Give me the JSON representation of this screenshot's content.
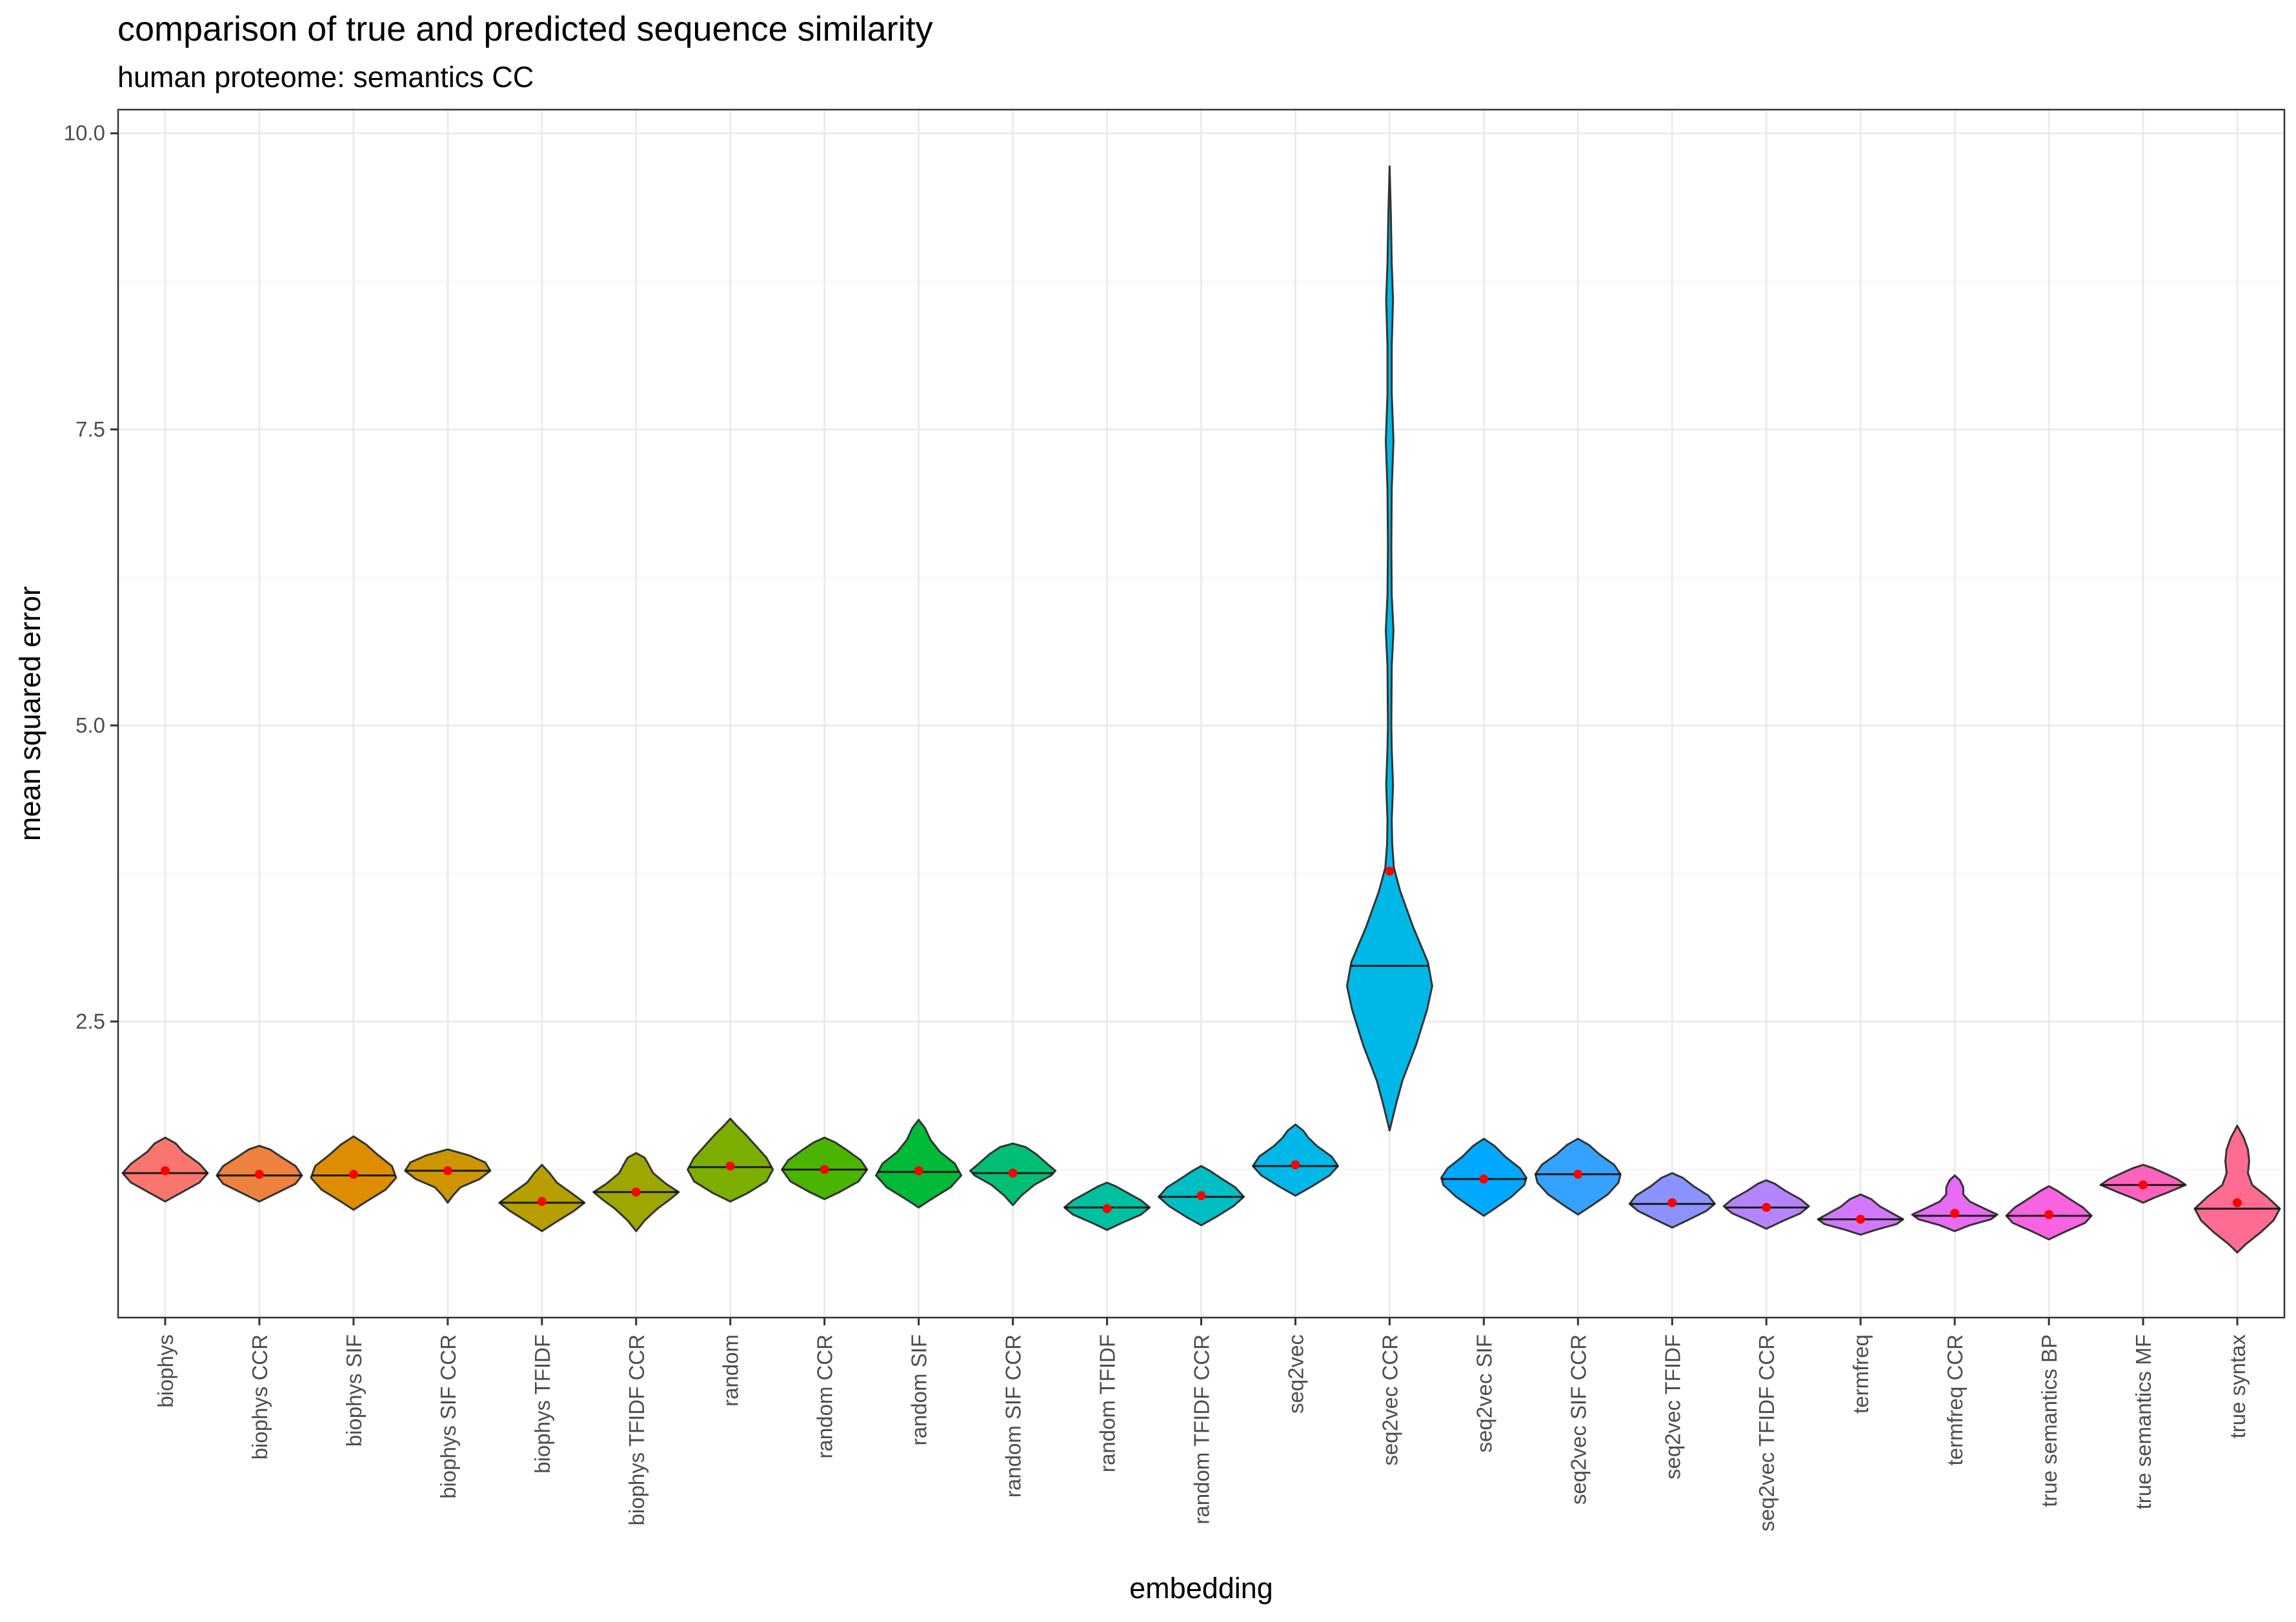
{
  "chart_data": {
    "type": "violin",
    "title": "comparison of true and predicted sequence similarity",
    "subtitle": "human proteome: semantics CC",
    "xlabel": "embedding",
    "ylabel": "mean squared error",
    "ylim": [
      0.0,
      10.2
    ],
    "yticks": [
      2.5,
      5.0,
      7.5,
      10.0
    ],
    "ytick_labels": [
      "2.5",
      "5.0",
      "7.5",
      "10.0"
    ],
    "grid": true,
    "legend": "none",
    "colors": {
      "panel_border": "#333333",
      "grid_major": "#ebebeb",
      "grid_minor": "#f4f4f4",
      "violin_outline": "#333333",
      "median_line": "#1a1a1a",
      "mean_point": "#ff0000"
    },
    "categories": [
      {
        "name": "biophys",
        "color": "#F8766D",
        "median": 1.22,
        "mean": 1.24,
        "min": 0.98,
        "max": 1.52,
        "profile": [
          [
            0.98,
            0.0
          ],
          [
            1.05,
            0.35
          ],
          [
            1.14,
            0.8
          ],
          [
            1.22,
            1.0
          ],
          [
            1.3,
            0.8
          ],
          [
            1.4,
            0.42
          ],
          [
            1.47,
            0.25
          ],
          [
            1.52,
            0.0
          ]
        ]
      },
      {
        "name": "biophys CCR",
        "color": "#ED813E",
        "median": 1.2,
        "mean": 1.21,
        "min": 0.98,
        "max": 1.45,
        "profile": [
          [
            0.98,
            0.0
          ],
          [
            1.05,
            0.4
          ],
          [
            1.13,
            0.85
          ],
          [
            1.2,
            1.0
          ],
          [
            1.28,
            0.85
          ],
          [
            1.36,
            0.5
          ],
          [
            1.42,
            0.25
          ],
          [
            1.45,
            0.0
          ]
        ]
      },
      {
        "name": "biophys SIF",
        "color": "#DE8C00",
        "median": 1.2,
        "mean": 1.21,
        "min": 0.91,
        "max": 1.53,
        "profile": [
          [
            0.91,
            0.0
          ],
          [
            0.98,
            0.3
          ],
          [
            1.08,
            0.75
          ],
          [
            1.18,
            1.0
          ],
          [
            1.28,
            0.9
          ],
          [
            1.38,
            0.55
          ],
          [
            1.46,
            0.3
          ],
          [
            1.53,
            0.0
          ]
        ]
      },
      {
        "name": "biophys SIF CCR",
        "color": "#CD9600",
        "median": 1.24,
        "mean": 1.24,
        "min": 0.97,
        "max": 1.42,
        "profile": [
          [
            0.97,
            0.0
          ],
          [
            1.03,
            0.12
          ],
          [
            1.1,
            0.3
          ],
          [
            1.17,
            0.75
          ],
          [
            1.24,
            1.0
          ],
          [
            1.31,
            0.88
          ],
          [
            1.37,
            0.5
          ],
          [
            1.42,
            0.0
          ]
        ]
      },
      {
        "name": "biophys TFIDF",
        "color": "#B79F00",
        "median": 0.97,
        "mean": 0.98,
        "min": 0.73,
        "max": 1.29,
        "profile": [
          [
            0.73,
            0.0
          ],
          [
            0.8,
            0.3
          ],
          [
            0.9,
            0.75
          ],
          [
            0.97,
            1.0
          ],
          [
            1.05,
            0.7
          ],
          [
            1.14,
            0.35
          ],
          [
            1.22,
            0.18
          ],
          [
            1.29,
            0.0
          ]
        ]
      },
      {
        "name": "biophys TFIDF CCR",
        "color": "#9DA700",
        "median": 1.06,
        "mean": 1.06,
        "min": 0.73,
        "max": 1.39,
        "profile": [
          [
            0.73,
            0.0
          ],
          [
            0.82,
            0.2
          ],
          [
            0.92,
            0.5
          ],
          [
            1.0,
            0.8
          ],
          [
            1.06,
            1.0
          ],
          [
            1.13,
            0.7
          ],
          [
            1.22,
            0.4
          ],
          [
            1.3,
            0.28
          ],
          [
            1.35,
            0.2
          ],
          [
            1.39,
            0.0
          ]
        ]
      },
      {
        "name": "random",
        "color": "#7CAE00",
        "median": 1.27,
        "mean": 1.28,
        "min": 0.98,
        "max": 1.68,
        "profile": [
          [
            0.98,
            0.0
          ],
          [
            1.05,
            0.4
          ],
          [
            1.15,
            0.85
          ],
          [
            1.25,
            1.0
          ],
          [
            1.35,
            0.85
          ],
          [
            1.45,
            0.6
          ],
          [
            1.55,
            0.35
          ],
          [
            1.62,
            0.15
          ],
          [
            1.68,
            0.0
          ]
        ]
      },
      {
        "name": "random CCR",
        "color": "#49B500",
        "median": 1.25,
        "mean": 1.25,
        "min": 1.0,
        "max": 1.52,
        "profile": [
          [
            1.0,
            0.0
          ],
          [
            1.06,
            0.35
          ],
          [
            1.15,
            0.8
          ],
          [
            1.25,
            1.0
          ],
          [
            1.33,
            0.85
          ],
          [
            1.42,
            0.5
          ],
          [
            1.48,
            0.25
          ],
          [
            1.52,
            0.0
          ]
        ]
      },
      {
        "name": "random SIF",
        "color": "#00BA38",
        "median": 1.23,
        "mean": 1.24,
        "min": 0.93,
        "max": 1.67,
        "profile": [
          [
            0.93,
            0.0
          ],
          [
            1.0,
            0.3
          ],
          [
            1.1,
            0.75
          ],
          [
            1.2,
            1.0
          ],
          [
            1.3,
            0.85
          ],
          [
            1.4,
            0.5
          ],
          [
            1.5,
            0.28
          ],
          [
            1.6,
            0.15
          ],
          [
            1.67,
            0.0
          ]
        ]
      },
      {
        "name": "random SIF CCR",
        "color": "#00BF74",
        "median": 1.22,
        "mean": 1.22,
        "min": 0.95,
        "max": 1.47,
        "profile": [
          [
            0.95,
            0.0
          ],
          [
            1.03,
            0.2
          ],
          [
            1.12,
            0.5
          ],
          [
            1.2,
            0.9
          ],
          [
            1.24,
            1.0
          ],
          [
            1.3,
            0.8
          ],
          [
            1.38,
            0.55
          ],
          [
            1.44,
            0.3
          ],
          [
            1.47,
            0.0
          ]
        ]
      },
      {
        "name": "random TFIDF",
        "color": "#00C19F",
        "median": 0.93,
        "mean": 0.92,
        "min": 0.74,
        "max": 1.14,
        "profile": [
          [
            0.74,
            0.0
          ],
          [
            0.8,
            0.35
          ],
          [
            0.87,
            0.8
          ],
          [
            0.93,
            1.0
          ],
          [
            0.99,
            0.8
          ],
          [
            1.06,
            0.45
          ],
          [
            1.11,
            0.2
          ],
          [
            1.14,
            0.0
          ]
        ]
      },
      {
        "name": "random TFIDF CCR",
        "color": "#00BFC4",
        "median": 1.02,
        "mean": 1.03,
        "min": 0.78,
        "max": 1.28,
        "profile": [
          [
            0.78,
            0.0
          ],
          [
            0.85,
            0.35
          ],
          [
            0.94,
            0.75
          ],
          [
            1.02,
            1.0
          ],
          [
            1.1,
            0.8
          ],
          [
            1.18,
            0.45
          ],
          [
            1.24,
            0.2
          ],
          [
            1.28,
            0.0
          ]
        ]
      },
      {
        "name": "seq2vec",
        "color": "#00B8E7",
        "median": 1.28,
        "mean": 1.29,
        "min": 1.03,
        "max": 1.63,
        "profile": [
          [
            1.03,
            0.0
          ],
          [
            1.1,
            0.35
          ],
          [
            1.2,
            0.8
          ],
          [
            1.28,
            1.0
          ],
          [
            1.36,
            0.85
          ],
          [
            1.45,
            0.5
          ],
          [
            1.52,
            0.3
          ],
          [
            1.58,
            0.18
          ],
          [
            1.63,
            0.0
          ]
        ]
      },
      {
        "name": "seq2vec CCR",
        "color": "#00B8E7",
        "median": 2.97,
        "mean": 3.77,
        "min": 1.58,
        "max": 9.72,
        "profile": [
          [
            1.58,
            0.0
          ],
          [
            1.8,
            0.15
          ],
          [
            2.0,
            0.3
          ],
          [
            2.3,
            0.62
          ],
          [
            2.6,
            0.88
          ],
          [
            2.8,
            1.0
          ],
          [
            3.0,
            0.9
          ],
          [
            3.3,
            0.55
          ],
          [
            3.6,
            0.25
          ],
          [
            3.8,
            0.1
          ],
          [
            4.0,
            0.06
          ],
          [
            4.2,
            0.05
          ],
          [
            4.5,
            0.08
          ],
          [
            4.8,
            0.05
          ],
          [
            5.0,
            0.04
          ],
          [
            5.5,
            0.05
          ],
          [
            5.8,
            0.09
          ],
          [
            6.1,
            0.05
          ],
          [
            6.5,
            0.04
          ],
          [
            7.0,
            0.05
          ],
          [
            7.4,
            0.09
          ],
          [
            7.8,
            0.05
          ],
          [
            8.2,
            0.05
          ],
          [
            8.6,
            0.08
          ],
          [
            8.9,
            0.05
          ],
          [
            9.3,
            0.03
          ],
          [
            9.72,
            0.0
          ]
        ]
      },
      {
        "name": "seq2vec SIF",
        "color": "#00A9FF",
        "median": 1.17,
        "mean": 1.17,
        "min": 0.86,
        "max": 1.51,
        "profile": [
          [
            0.86,
            0.0
          ],
          [
            0.92,
            0.25
          ],
          [
            1.02,
            0.65
          ],
          [
            1.12,
            0.95
          ],
          [
            1.18,
            1.0
          ],
          [
            1.26,
            0.85
          ],
          [
            1.36,
            0.5
          ],
          [
            1.45,
            0.25
          ],
          [
            1.51,
            0.0
          ]
        ]
      },
      {
        "name": "seq2vec SIF CCR",
        "color": "#35A2FF",
        "median": 1.21,
        "mean": 1.21,
        "min": 0.87,
        "max": 1.51,
        "profile": [
          [
            0.87,
            0.0
          ],
          [
            0.94,
            0.3
          ],
          [
            1.04,
            0.7
          ],
          [
            1.14,
            0.95
          ],
          [
            1.21,
            1.0
          ],
          [
            1.29,
            0.85
          ],
          [
            1.38,
            0.5
          ],
          [
            1.46,
            0.25
          ],
          [
            1.51,
            0.0
          ]
        ]
      },
      {
        "name": "seq2vec TFIDF",
        "color": "#8B93FF",
        "median": 0.96,
        "mean": 0.97,
        "min": 0.76,
        "max": 1.22,
        "profile": [
          [
            0.76,
            0.0
          ],
          [
            0.82,
            0.35
          ],
          [
            0.9,
            0.8
          ],
          [
            0.96,
            1.0
          ],
          [
            1.03,
            0.85
          ],
          [
            1.11,
            0.5
          ],
          [
            1.18,
            0.25
          ],
          [
            1.22,
            0.0
          ]
        ]
      },
      {
        "name": "seq2vec TFIDF CCR",
        "color": "#B584FF",
        "median": 0.93,
        "mean": 0.93,
        "min": 0.75,
        "max": 1.16,
        "profile": [
          [
            0.75,
            0.0
          ],
          [
            0.81,
            0.35
          ],
          [
            0.88,
            0.8
          ],
          [
            0.94,
            1.0
          ],
          [
            1.0,
            0.8
          ],
          [
            1.07,
            0.45
          ],
          [
            1.13,
            0.2
          ],
          [
            1.16,
            0.0
          ]
        ]
      },
      {
        "name": "termfreq",
        "color": "#D277FF",
        "median": 0.83,
        "mean": 0.83,
        "min": 0.7,
        "max": 1.04,
        "profile": [
          [
            0.7,
            0.0
          ],
          [
            0.74,
            0.35
          ],
          [
            0.79,
            0.85
          ],
          [
            0.83,
            1.0
          ],
          [
            0.88,
            0.75
          ],
          [
            0.94,
            0.45
          ],
          [
            1.0,
            0.25
          ],
          [
            1.04,
            0.0
          ]
        ]
      },
      {
        "name": "termfreq CCR",
        "color": "#E76BF3",
        "median": 0.86,
        "mean": 0.88,
        "min": 0.73,
        "max": 1.2,
        "profile": [
          [
            0.73,
            0.0
          ],
          [
            0.78,
            0.35
          ],
          [
            0.83,
            0.85
          ],
          [
            0.87,
            1.0
          ],
          [
            0.92,
            0.7
          ],
          [
            0.98,
            0.35
          ],
          [
            1.04,
            0.2
          ],
          [
            1.1,
            0.2
          ],
          [
            1.16,
            0.12
          ],
          [
            1.2,
            0.0
          ]
        ]
      },
      {
        "name": "true semantics BP",
        "color": "#F763E0",
        "median": 0.86,
        "mean": 0.87,
        "min": 0.66,
        "max": 1.11,
        "profile": [
          [
            0.66,
            0.0
          ],
          [
            0.72,
            0.35
          ],
          [
            0.8,
            0.85
          ],
          [
            0.86,
            1.0
          ],
          [
            0.93,
            0.8
          ],
          [
            1.01,
            0.45
          ],
          [
            1.07,
            0.2
          ],
          [
            1.11,
            0.0
          ]
        ]
      },
      {
        "name": "true semantics MF",
        "color": "#FF62BC",
        "median": 1.12,
        "mean": 1.12,
        "min": 0.97,
        "max": 1.29,
        "profile": [
          [
            0.97,
            0.0
          ],
          [
            1.01,
            0.25
          ],
          [
            1.06,
            0.6
          ],
          [
            1.12,
            1.0
          ],
          [
            1.17,
            0.8
          ],
          [
            1.22,
            0.5
          ],
          [
            1.26,
            0.25
          ],
          [
            1.29,
            0.0
          ]
        ]
      },
      {
        "name": "true syntax",
        "color": "#FF6C91",
        "median": 0.92,
        "mean": 0.97,
        "min": 0.55,
        "max": 1.62,
        "profile": [
          [
            0.55,
            0.0
          ],
          [
            0.62,
            0.2
          ],
          [
            0.72,
            0.55
          ],
          [
            0.82,
            0.85
          ],
          [
            0.92,
            1.0
          ],
          [
            1.02,
            0.7
          ],
          [
            1.12,
            0.35
          ],
          [
            1.22,
            0.25
          ],
          [
            1.32,
            0.28
          ],
          [
            1.42,
            0.25
          ],
          [
            1.52,
            0.15
          ],
          [
            1.62,
            0.0
          ]
        ]
      }
    ]
  }
}
